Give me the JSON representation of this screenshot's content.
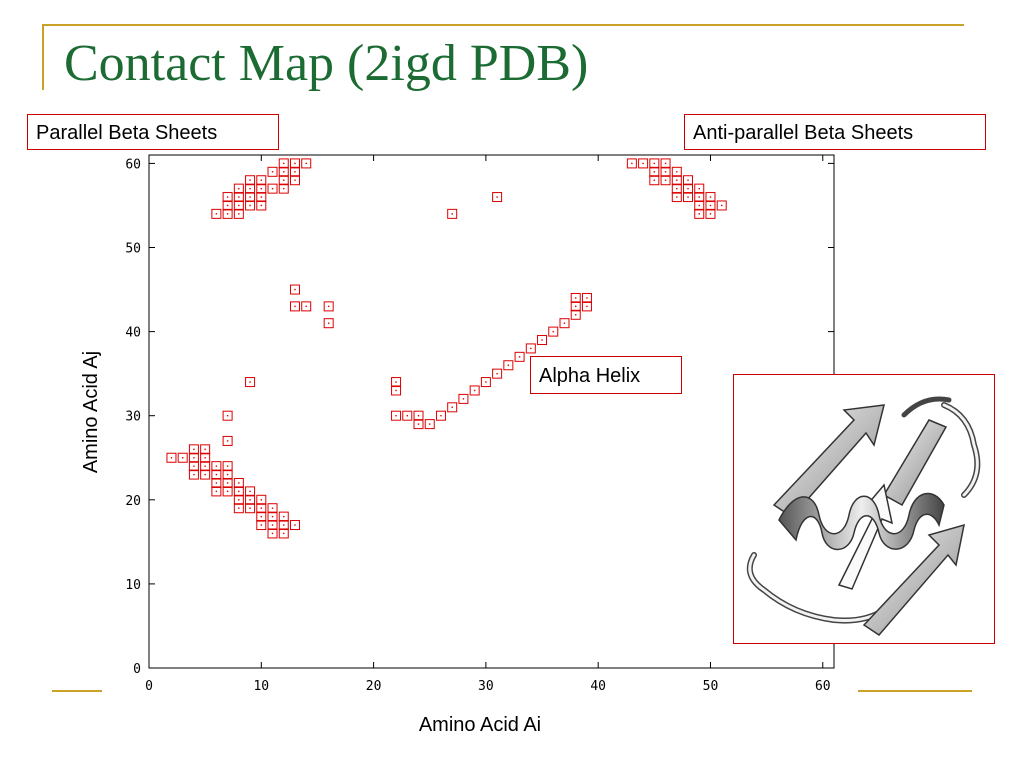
{
  "slide": {
    "title": "Contact Map (2igd PDB)"
  },
  "callouts": {
    "parallel": "Parallel Beta Sheets",
    "antiparallel": "Anti-parallel Beta Sheets",
    "helix": "Alpha Helix"
  },
  "colors": {
    "accent": "#c9a227",
    "title": "#1b6b32",
    "marker": "#dd0000",
    "callout_border": "#cc0000"
  },
  "image": {
    "icon": "protein-ribbon-structure"
  },
  "chart_data": {
    "type": "scatter",
    "title": "",
    "xlabel": "Amino Acid Ai",
    "ylabel": "Amino Acid Aj",
    "xlim": [
      0,
      61
    ],
    "ylim": [
      0,
      61
    ],
    "xticks": [
      0,
      10,
      20,
      30,
      40,
      50,
      60
    ],
    "yticks": [
      0,
      10,
      20,
      30,
      40,
      50,
      60
    ],
    "grid": false,
    "legend": "none",
    "marker": "open-square",
    "series": [
      {
        "points": [
          [
            2,
            25
          ],
          [
            3,
            25
          ],
          [
            4,
            26
          ],
          [
            5,
            26
          ],
          [
            4,
            25
          ],
          [
            5,
            25
          ],
          [
            4,
            24
          ],
          [
            5,
            24
          ],
          [
            6,
            24
          ],
          [
            7,
            24
          ],
          [
            4,
            23
          ],
          [
            5,
            23
          ],
          [
            6,
            23
          ],
          [
            7,
            23
          ],
          [
            6,
            22
          ],
          [
            7,
            22
          ],
          [
            8,
            22
          ],
          [
            6,
            21
          ],
          [
            7,
            21
          ],
          [
            8,
            21
          ],
          [
            9,
            21
          ],
          [
            8,
            20
          ],
          [
            9,
            20
          ],
          [
            10,
            20
          ],
          [
            8,
            19
          ],
          [
            9,
            19
          ],
          [
            10,
            19
          ],
          [
            11,
            19
          ],
          [
            10,
            18
          ],
          [
            11,
            18
          ],
          [
            12,
            18
          ],
          [
            10,
            17
          ],
          [
            11,
            17
          ],
          [
            12,
            17
          ],
          [
            13,
            17
          ],
          [
            11,
            16
          ],
          [
            12,
            16
          ],
          [
            7,
            27
          ],
          [
            7,
            30
          ],
          [
            9,
            34
          ],
          [
            12,
            60
          ],
          [
            13,
            60
          ],
          [
            14,
            60
          ],
          [
            11,
            59
          ],
          [
            12,
            59
          ],
          [
            13,
            59
          ],
          [
            9,
            58
          ],
          [
            10,
            58
          ],
          [
            12,
            58
          ],
          [
            13,
            58
          ],
          [
            8,
            57
          ],
          [
            9,
            57
          ],
          [
            10,
            57
          ],
          [
            11,
            57
          ],
          [
            12,
            57
          ],
          [
            7,
            56
          ],
          [
            8,
            56
          ],
          [
            9,
            56
          ],
          [
            10,
            56
          ],
          [
            7,
            55
          ],
          [
            8,
            55
          ],
          [
            9,
            55
          ],
          [
            10,
            55
          ],
          [
            6,
            54
          ],
          [
            7,
            54
          ],
          [
            8,
            54
          ],
          [
            13,
            45
          ],
          [
            13,
            43
          ],
          [
            14,
            43
          ],
          [
            16,
            43
          ],
          [
            16,
            41
          ],
          [
            27,
            54
          ],
          [
            31,
            56
          ],
          [
            22,
            34
          ],
          [
            22,
            33
          ],
          [
            22,
            30
          ],
          [
            23,
            30
          ],
          [
            24,
            30
          ],
          [
            24,
            29
          ],
          [
            25,
            29
          ],
          [
            26,
            30
          ],
          [
            27,
            31
          ],
          [
            28,
            32
          ],
          [
            29,
            33
          ],
          [
            30,
            34
          ],
          [
            31,
            35
          ],
          [
            32,
            36
          ],
          [
            33,
            37
          ],
          [
            34,
            38
          ],
          [
            35,
            39
          ],
          [
            36,
            40
          ],
          [
            37,
            41
          ],
          [
            38,
            42
          ],
          [
            38,
            43
          ],
          [
            39,
            43
          ],
          [
            38,
            44
          ],
          [
            39,
            44
          ],
          [
            43,
            60
          ],
          [
            44,
            60
          ],
          [
            45,
            60
          ],
          [
            46,
            60
          ],
          [
            45,
            59
          ],
          [
            46,
            59
          ],
          [
            47,
            59
          ],
          [
            45,
            58
          ],
          [
            46,
            58
          ],
          [
            47,
            58
          ],
          [
            48,
            58
          ],
          [
            47,
            57
          ],
          [
            48,
            57
          ],
          [
            49,
            57
          ],
          [
            47,
            56
          ],
          [
            48,
            56
          ],
          [
            49,
            56
          ],
          [
            50,
            56
          ],
          [
            49,
            55
          ],
          [
            50,
            55
          ],
          [
            51,
            55
          ],
          [
            49,
            54
          ],
          [
            50,
            54
          ]
        ]
      }
    ]
  }
}
